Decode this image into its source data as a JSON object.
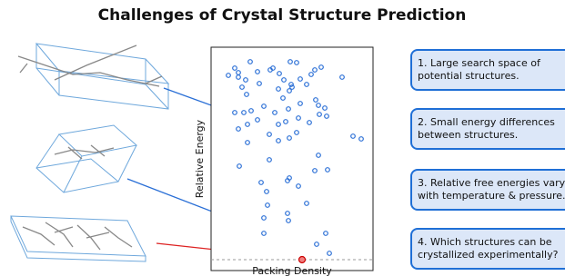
{
  "title": "Challenges of Crystal Structure Prediction",
  "plot": {
    "y_label": "Relative Energy",
    "x_label": "Packing Density"
  },
  "boxes": [
    {
      "lines": [
        "1. Large search space of",
        "potential structures."
      ]
    },
    {
      "lines": [
        "2. Small energy differences",
        "between structures."
      ]
    },
    {
      "lines": [
        "3. Relative free energies vary",
        "with temperature & pressure."
      ]
    },
    {
      "lines": [
        "4. Which structures can be",
        "crystallized experimentally?"
      ]
    }
  ]
}
